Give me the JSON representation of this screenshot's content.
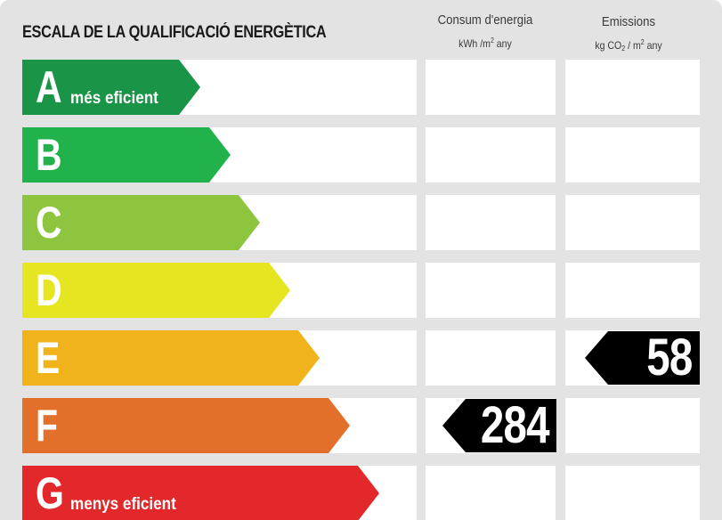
{
  "header": {
    "title": "ESCALA DE LA QUALIFICACIÓ ENERGÈTICA",
    "consum_title": "Consum d'energia",
    "consum_unit_prefix": "kWh /m",
    "consum_unit_exp": "2",
    "consum_unit_suffix": " any",
    "emis_title": "Emissions",
    "emis_unit_a": "kg CO",
    "emis_unit_sub": "2",
    "emis_unit_b": " / m",
    "emis_unit_exp": "2",
    "emis_unit_c": " any"
  },
  "classes": [
    {
      "letter": "A",
      "label": "més eficient",
      "color": "#1a9447"
    },
    {
      "letter": "B",
      "label": "",
      "color": "#22b24c"
    },
    {
      "letter": "C",
      "label": "",
      "color": "#8dc53e"
    },
    {
      "letter": "D",
      "label": "",
      "color": "#e6e522"
    },
    {
      "letter": "E",
      "label": "",
      "color": "#f0b31b"
    },
    {
      "letter": "F",
      "label": "",
      "color": "#e2702a"
    },
    {
      "letter": "G",
      "label": "menys eficient",
      "color": "#e2282a"
    }
  ],
  "rating": {
    "consum_class": "F",
    "consum_value": "284",
    "emissions_class": "E",
    "emissions_value": "58",
    "tag_color": "#000000"
  }
}
